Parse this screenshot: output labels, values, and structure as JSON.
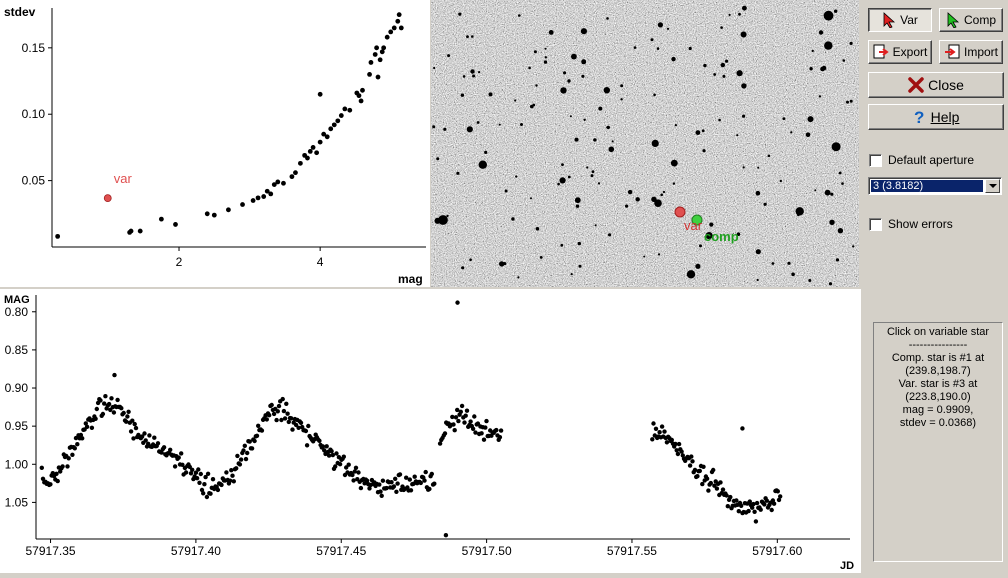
{
  "sidebar": {
    "var_label": "Var",
    "comp_label": "Comp",
    "export_label": "Export",
    "import_label": "Import",
    "close_label": "Close",
    "help_label": "Help",
    "default_aperture_label": "Default aperture",
    "aperture_value": "3 (3.8182)",
    "show_errors_label": "Show errors",
    "info_lines": [
      "Click on variable star",
      "----------------",
      "Comp. star is #1 at",
      "(239.8,198.7)",
      "Var. star is #3 at",
      "(223.8,190.0)",
      "mag = 0.9909,",
      "stdev = 0.0368)"
    ]
  },
  "image_panel": {
    "var_marker_label": "var",
    "comp_marker_label": "comp",
    "colors": {
      "var": "#e05050",
      "comp": "#30c030"
    }
  },
  "chart_data": [
    {
      "type": "scatter",
      "title": "",
      "xlabel": "mag",
      "ylabel": "stdev",
      "xlim": [
        0.2,
        5.5
      ],
      "ylim": [
        0.0,
        0.18
      ],
      "xticks": [
        2,
        4
      ],
      "yticks": [
        0.05,
        0.1,
        0.15
      ],
      "ytick_labels": [
        "0.05",
        "0.10",
        "0.15"
      ],
      "highlight": {
        "label": "var",
        "x": 0.99,
        "y": 0.0368,
        "color": "#e05050"
      },
      "points": [
        [
          0.28,
          0.008
        ],
        [
          1.3,
          0.011
        ],
        [
          1.32,
          0.012
        ],
        [
          1.45,
          0.012
        ],
        [
          1.75,
          0.021
        ],
        [
          1.95,
          0.017
        ],
        [
          2.4,
          0.025
        ],
        [
          2.5,
          0.024
        ],
        [
          2.7,
          0.028
        ],
        [
          2.9,
          0.032
        ],
        [
          3.05,
          0.035
        ],
        [
          3.12,
          0.037
        ],
        [
          3.2,
          0.038
        ],
        [
          3.25,
          0.042
        ],
        [
          3.3,
          0.04
        ],
        [
          3.35,
          0.047
        ],
        [
          3.4,
          0.049
        ],
        [
          3.48,
          0.048
        ],
        [
          3.6,
          0.053
        ],
        [
          3.65,
          0.056
        ],
        [
          3.72,
          0.063
        ],
        [
          3.78,
          0.069
        ],
        [
          3.82,
          0.067
        ],
        [
          3.86,
          0.072
        ],
        [
          3.9,
          0.075
        ],
        [
          3.95,
          0.071
        ],
        [
          4.0,
          0.079
        ],
        [
          4.05,
          0.085
        ],
        [
          4.1,
          0.083
        ],
        [
          4.15,
          0.089
        ],
        [
          4.2,
          0.092
        ],
        [
          4.25,
          0.095
        ],
        [
          4.3,
          0.099
        ],
        [
          4.35,
          0.104
        ],
        [
          4.42,
          0.103
        ],
        [
          4.55,
          0.114
        ],
        [
          4.6,
          0.118
        ],
        [
          4.52,
          0.116
        ],
        [
          4.58,
          0.11
        ],
        [
          4.7,
          0.13
        ],
        [
          4.72,
          0.139
        ],
        [
          4.78,
          0.145
        ],
        [
          4.8,
          0.15
        ],
        [
          4.85,
          0.141
        ],
        [
          4.88,
          0.147
        ],
        [
          4.9,
          0.15
        ],
        [
          4.95,
          0.158
        ],
        [
          5.0,
          0.162
        ],
        [
          5.05,
          0.165
        ],
        [
          5.1,
          0.17
        ],
        [
          5.12,
          0.175
        ],
        [
          5.15,
          0.165
        ],
        [
          4.0,
          0.115
        ],
        [
          4.82,
          0.128
        ]
      ]
    },
    {
      "type": "scatter",
      "title": "",
      "xlabel": "JD",
      "ylabel": "MAG",
      "xlim": [
        57917.345,
        57917.625
      ],
      "ylim": [
        1.098,
        0.778
      ],
      "xticks": [
        57917.35,
        57917.4,
        57917.45,
        57917.5,
        57917.55,
        57917.6
      ],
      "xtick_labels": [
        "57917.35",
        "57917.40",
        "57917.45",
        "57917.50",
        "57917.55",
        "57917.60"
      ],
      "yticks": [
        0.8,
        0.85,
        0.9,
        0.95,
        1.0,
        1.05
      ],
      "ytick_labels": [
        "0.80",
        "0.85",
        "0.90",
        "0.95",
        "1.00",
        "1.05"
      ],
      "outliers": [
        [
          57917.372,
          0.883
        ],
        [
          57917.49,
          0.788
        ],
        [
          57917.486,
          1.093
        ],
        [
          57917.588,
          0.953
        ]
      ],
      "segments": [
        {
          "x": [
            57917.347,
            57917.352,
            57917.357,
            57917.362,
            57917.367,
            57917.372,
            57917.377,
            57917.382,
            57917.387,
            57917.392,
            57917.397,
            57917.402,
            57917.407,
            57917.412,
            57917.417,
            57917.422,
            57917.427,
            57917.432,
            57917.437,
            57917.442,
            57917.447,
            57917.452,
            57917.457,
            57917.462,
            57917.467,
            57917.472,
            57917.477,
            57917.482
          ],
          "y": [
            1.02,
            1.015,
            0.985,
            0.955,
            0.925,
            0.922,
            0.945,
            0.965,
            0.975,
            0.99,
            1.005,
            1.025,
            1.03,
            1.015,
            0.99,
            0.955,
            0.925,
            0.935,
            0.955,
            0.975,
            0.99,
            1.005,
            1.02,
            1.03,
            1.03,
            1.025,
            1.02,
            1.02
          ]
        },
        {
          "x": [
            57917.484,
            57917.487,
            57917.49,
            57917.495,
            57917.5,
            57917.505
          ],
          "y": [
            0.97,
            0.945,
            0.935,
            0.945,
            0.955,
            0.96
          ]
        },
        {
          "x": [
            57917.557,
            57917.562,
            57917.567,
            57917.572,
            57917.577,
            57917.582,
            57917.587,
            57917.592,
            57917.597,
            57917.601
          ],
          "y": [
            0.955,
            0.965,
            0.985,
            1.005,
            1.02,
            1.04,
            1.055,
            1.06,
            1.045,
            1.035
          ]
        }
      ]
    }
  ]
}
